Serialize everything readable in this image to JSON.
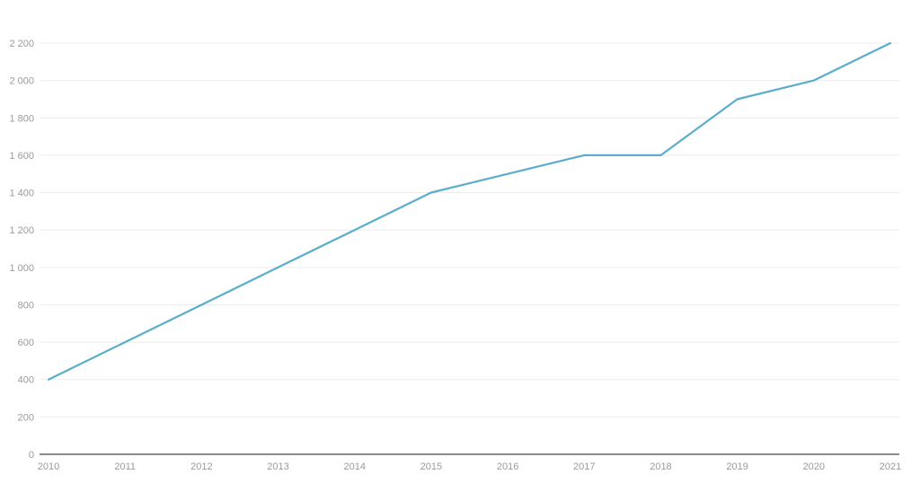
{
  "chart_data": {
    "type": "line",
    "title": "",
    "xlabel": "",
    "ylabel": "",
    "x": [
      "2010",
      "2011",
      "2012",
      "2013",
      "2014",
      "2015",
      "2016",
      "2017",
      "2018",
      "2019",
      "2020",
      "2021"
    ],
    "series": [
      {
        "values": [
          400,
          600,
          800,
          1000,
          1200,
          1400,
          1500,
          1600,
          1600,
          1900,
          2000,
          2200
        ],
        "color": "#5aaecb"
      }
    ],
    "ylim": [
      0,
      2200
    ],
    "yticks": [
      0,
      200,
      400,
      600,
      800,
      1000,
      1200,
      1400,
      1600,
      1800,
      2000,
      2200
    ],
    "ytick_labels": [
      "0",
      "200",
      "400",
      "600",
      "800",
      "1 000",
      "1 200",
      "1 400",
      "1 600",
      "1 800",
      "2 000",
      "2 200"
    ],
    "grid": true,
    "legend": "none"
  }
}
